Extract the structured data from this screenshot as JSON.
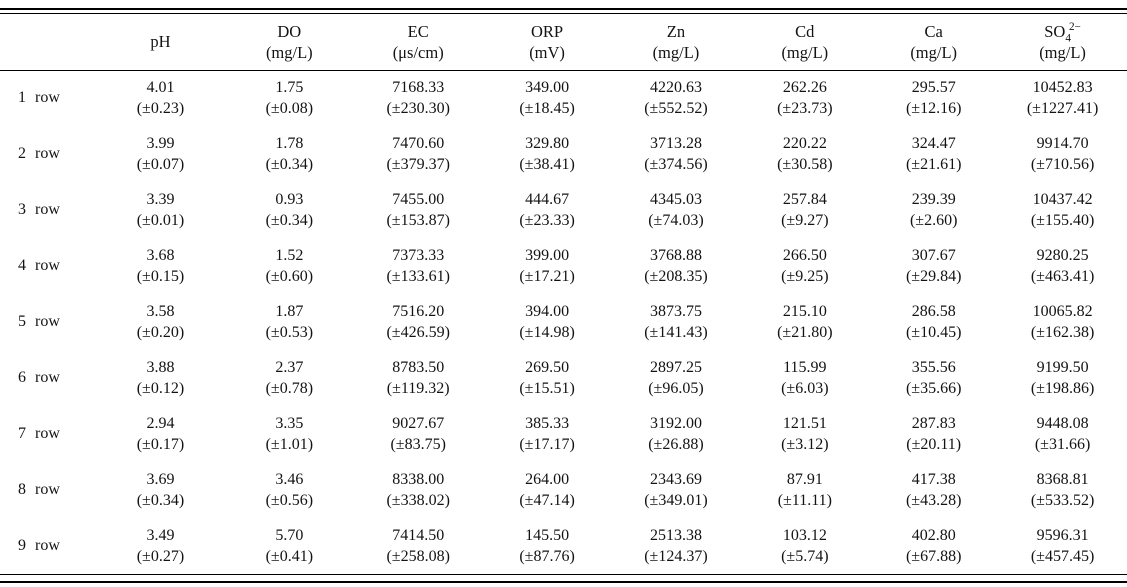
{
  "table": {
    "title": "water-quality-measurements-by-row",
    "columns": [
      {
        "id": "ph",
        "label": "pH",
        "sub": "",
        "sup": "",
        "unit": ""
      },
      {
        "id": "do",
        "label": "DO",
        "sub": "",
        "sup": "",
        "unit": "(mg/L)"
      },
      {
        "id": "ec",
        "label": "EC",
        "sub": "",
        "sup": "",
        "unit": "(μs/cm)"
      },
      {
        "id": "orp",
        "label": "ORP",
        "sub": "",
        "sup": "",
        "unit": "(mV)"
      },
      {
        "id": "zn",
        "label": "Zn",
        "sub": "",
        "sup": "",
        "unit": "(mg/L)"
      },
      {
        "id": "cd",
        "label": "Cd",
        "sub": "",
        "sup": "",
        "unit": "(mg/L)"
      },
      {
        "id": "ca",
        "label": "Ca",
        "sub": "",
        "sup": "",
        "unit": "(mg/L)"
      },
      {
        "id": "so4",
        "label": "SO",
        "sub": "4",
        "sup": "2−",
        "unit": "(mg/L)"
      }
    ],
    "rows": [
      {
        "label": "1 row",
        "values": [
          "4.01",
          "1.75",
          "7168.33",
          "349.00",
          "4220.63",
          "262.26",
          "295.57",
          "10452.83"
        ],
        "sd": [
          "(±0.23)",
          "(±0.08)",
          "(±230.30)",
          "(±18.45)",
          "(±552.52)",
          "(±23.73)",
          "(±12.16)",
          "(±1227.41)"
        ]
      },
      {
        "label": "2 row",
        "values": [
          "3.99",
          "1.78",
          "7470.60",
          "329.80",
          "3713.28",
          "220.22",
          "324.47",
          "9914.70"
        ],
        "sd": [
          "(±0.07)",
          "(±0.34)",
          "(±379.37)",
          "(±38.41)",
          "(±374.56)",
          "(±30.58)",
          "(±21.61)",
          "(±710.56)"
        ]
      },
      {
        "label": "3 row",
        "values": [
          "3.39",
          "0.93",
          "7455.00",
          "444.67",
          "4345.03",
          "257.84",
          "239.39",
          "10437.42"
        ],
        "sd": [
          "(±0.01)",
          "(±0.34)",
          "(±153.87)",
          "(±23.33)",
          "(±74.03)",
          "(±9.27)",
          "(±2.60)",
          "(±155.40)"
        ]
      },
      {
        "label": "4 row",
        "values": [
          "3.68",
          "1.52",
          "7373.33",
          "399.00",
          "3768.88",
          "266.50",
          "307.67",
          "9280.25"
        ],
        "sd": [
          "(±0.15)",
          "(±0.60)",
          "(±133.61)",
          "(±17.21)",
          "(±208.35)",
          "(±9.25)",
          "(±29.84)",
          "(±463.41)"
        ]
      },
      {
        "label": "5 row",
        "values": [
          "3.58",
          "1.87",
          "7516.20",
          "394.00",
          "3873.75",
          "215.10",
          "286.58",
          "10065.82"
        ],
        "sd": [
          "(±0.20)",
          "(±0.53)",
          "(±426.59)",
          "(±14.98)",
          "(±141.43)",
          "(±21.80)",
          "(±10.45)",
          "(±162.38)"
        ]
      },
      {
        "label": "6 row",
        "values": [
          "3.88",
          "2.37",
          "8783.50",
          "269.50",
          "2897.25",
          "115.99",
          "355.56",
          "9199.50"
        ],
        "sd": [
          "(±0.12)",
          "(±0.78)",
          "(±119.32)",
          "(±15.51)",
          "(±96.05)",
          "(±6.03)",
          "(±35.66)",
          "(±198.86)"
        ]
      },
      {
        "label": "7 row",
        "values": [
          "2.94",
          "3.35",
          "9027.67",
          "385.33",
          "3192.00",
          "121.51",
          "287.83",
          "9448.08"
        ],
        "sd": [
          "(±0.17)",
          "(±1.01)",
          "(±83.75)",
          "(±17.17)",
          "(±26.88)",
          "(±3.12)",
          "(±20.11)",
          "(±31.66)"
        ]
      },
      {
        "label": "8 row",
        "values": [
          "3.69",
          "3.46",
          "8338.00",
          "264.00",
          "2343.69",
          "87.91",
          "417.38",
          "8368.81"
        ],
        "sd": [
          "(±0.34)",
          "(±0.56)",
          "(±338.02)",
          "(±47.14)",
          "(±349.01)",
          "(±11.11)",
          "(±43.28)",
          "(±533.52)"
        ]
      },
      {
        "label": "9 row",
        "values": [
          "3.49",
          "5.70",
          "7414.50",
          "145.50",
          "2513.38",
          "103.12",
          "402.80",
          "9596.31"
        ],
        "sd": [
          "(±0.27)",
          "(±0.41)",
          "(±258.08)",
          "(±87.76)",
          "(±124.37)",
          "(±5.74)",
          "(±67.88)",
          "(±457.45)"
        ]
      }
    ]
  }
}
